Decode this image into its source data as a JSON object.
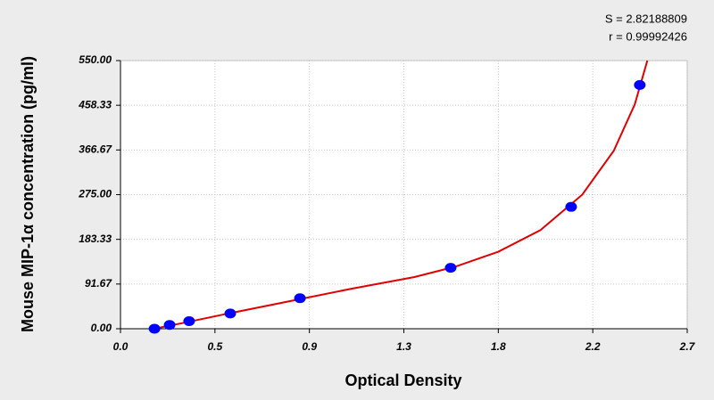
{
  "chart_data": {
    "type": "scatter",
    "x_label": "Optical Density",
    "y_label": "Mouse MIP-1α concentration (pg/ml)",
    "annotations": [
      "S = 2.82188809",
      "r = 0.99992426"
    ],
    "xlim": [
      0,
      2.7
    ],
    "ylim": [
      0,
      550
    ],
    "xticks": [
      {
        "value": 0,
        "label": "0.0"
      },
      {
        "value": 0.45,
        "label": "0.5"
      },
      0.9,
      {
        "value": 1.35,
        "label": "1.3"
      },
      1.8,
      {
        "value": 2.25,
        "label": "2.2"
      },
      2.7
    ],
    "yticks": [
      {
        "value": 0,
        "label": "0.00"
      },
      91.67,
      183.33,
      {
        "value": 275,
        "label": "275.00"
      },
      366.67,
      458.33,
      {
        "value": 550,
        "label": "550.00"
      }
    ],
    "grid": true,
    "points": {
      "color": "#0000ff",
      "x": [
        0.162,
        0.234,
        0.327,
        0.523,
        0.855,
        1.573,
        2.147,
        2.474
      ],
      "y": [
        0,
        7.8,
        15.6,
        31.3,
        62.5,
        125,
        250,
        500
      ]
    },
    "curve": {
      "color": "#e00000",
      "x": [
        0.16,
        0.3,
        0.5,
        0.8,
        1.1,
        1.4,
        1.6,
        1.8,
        2.0,
        2.2,
        2.35,
        2.45,
        2.51
      ],
      "y": [
        0,
        12,
        30,
        56,
        82,
        106,
        128,
        158,
        202,
        275,
        365,
        460,
        550
      ]
    }
  }
}
